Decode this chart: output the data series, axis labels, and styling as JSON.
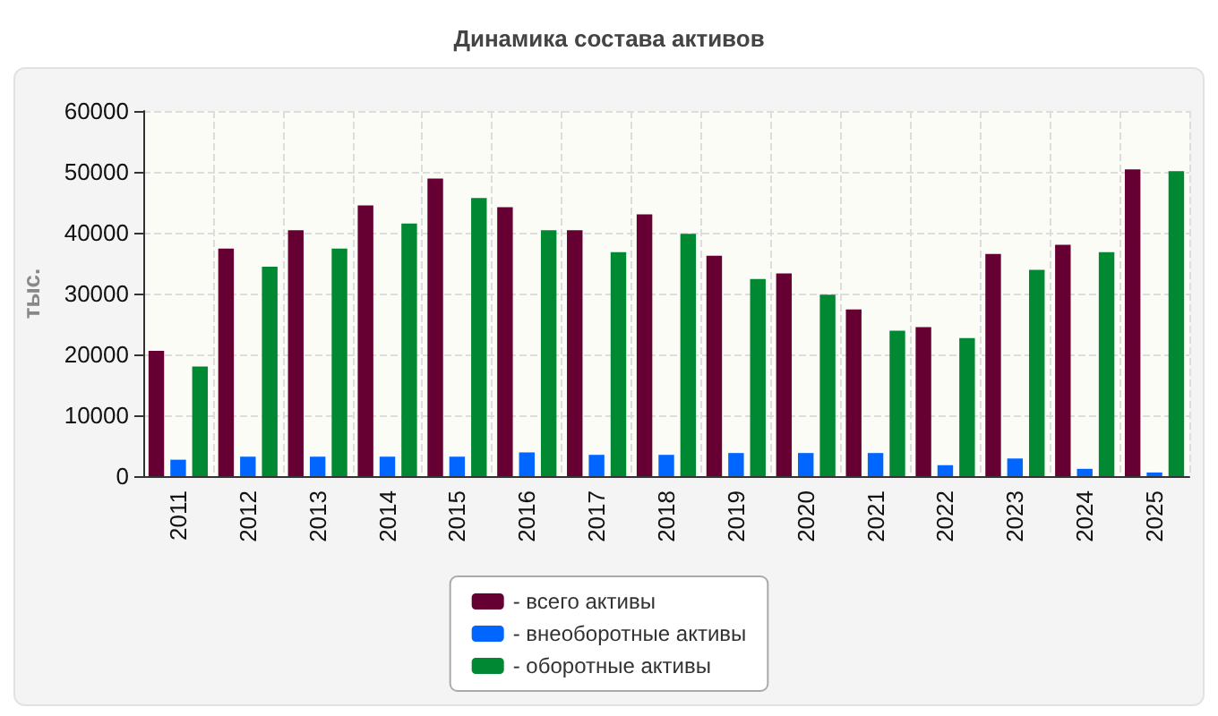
{
  "chart_data": {
    "type": "bar",
    "title": "Динамика состава активов",
    "ylabel": "тыс.",
    "categories": [
      "2011",
      "2012",
      "2013",
      "2014",
      "2015",
      "2016",
      "2017",
      "2018",
      "2019",
      "2020",
      "2021",
      "2022",
      "2023",
      "2024",
      "2025"
    ],
    "series": [
      {
        "name": "- всего активы",
        "color": "#660033",
        "values": [
          20600,
          37400,
          40400,
          44500,
          48900,
          44200,
          40400,
          43000,
          36200,
          33300,
          27400,
          24500,
          36500,
          38000,
          50400
        ]
      },
      {
        "name": "- внеоборотные активы",
        "color": "#0066ff",
        "values": [
          2700,
          3200,
          3200,
          3200,
          3200,
          3900,
          3500,
          3500,
          3800,
          3800,
          3800,
          1800,
          2900,
          1200,
          600
        ]
      },
      {
        "name": "- оборотные активы",
        "color": "#008833",
        "values": [
          18000,
          34400,
          37400,
          41500,
          45700,
          40400,
          36800,
          39800,
          32400,
          29800,
          23900,
          22700,
          33900,
          36800,
          50100
        ]
      }
    ],
    "ylim": [
      0,
      60000
    ],
    "yticks": [
      0,
      10000,
      20000,
      30000,
      40000,
      50000,
      60000
    ],
    "grid": true,
    "legend": "bottom"
  }
}
